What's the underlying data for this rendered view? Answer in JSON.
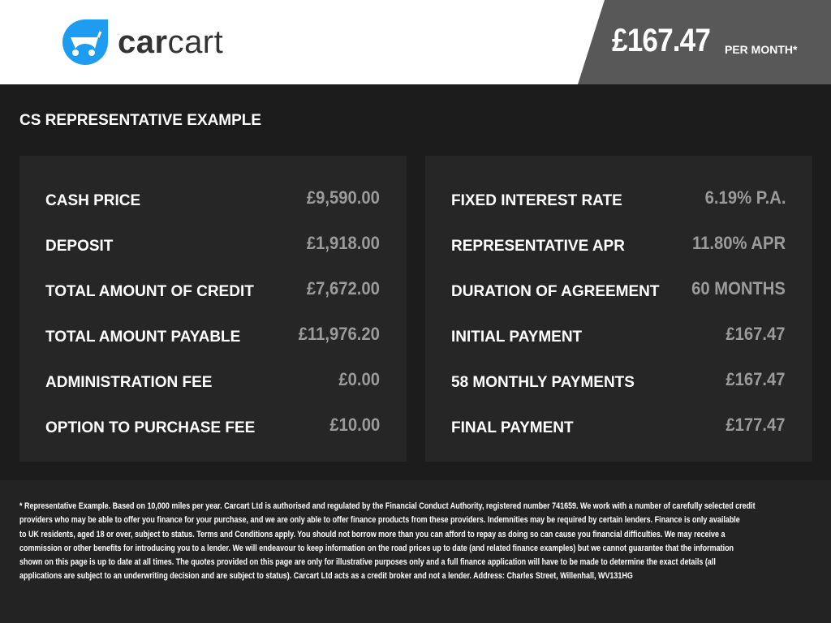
{
  "header": {
    "brand": "carcart",
    "brand_parts": [
      "car",
      "cart"
    ],
    "brand_color": "#1e9cef",
    "monthly_price": "£167.47",
    "monthly_label": "PER MONTH*"
  },
  "section_title": "CS REPRESENTATIVE EXAMPLE",
  "left_items": [
    {
      "label": "CASH PRICE",
      "value": "£9,590.00"
    },
    {
      "label": "DEPOSIT",
      "value": "£1,918.00"
    },
    {
      "label": "TOTAL AMOUNT OF CREDIT",
      "value": "£7,672.00"
    },
    {
      "label": "TOTAL AMOUNT PAYABLE",
      "value": "£11,976.20"
    },
    {
      "label": "ADMINISTRATION FEE",
      "value": "£0.00"
    },
    {
      "label": "OPTION TO PURCHASE FEE",
      "value": "£10.00"
    }
  ],
  "right_items": [
    {
      "label": "FIXED INTEREST RATE",
      "value": "6.19% P.A."
    },
    {
      "label": "REPRESENTATIVE APR",
      "value": "11.80% APR"
    },
    {
      "label": "DURATION OF AGREEMENT",
      "value": "60 MONTHS"
    },
    {
      "label": "INITIAL PAYMENT",
      "value": "£167.47"
    },
    {
      "label": "58 MONTHLY PAYMENTS",
      "value": "£167.47"
    },
    {
      "label": "FINAL PAYMENT",
      "value": "£177.47"
    }
  ],
  "disclaimer_lines": [
    "* Representative Example. Based on 10,000 miles per year. Carcart Ltd is authorised and regulated by the Financial Conduct Authority, registered number 741659. We work with a number of carefully selected credit",
    "providers who may be able to offer you finance for your purchase, and we are only able to offer finance products from these providers. Indemnities may be required by certain lenders. Finance is only available",
    "to UK residents, aged 18 or over, subject to status. Terms and Conditions apply. You should not borrow more than you can afford to repay as doing so can cause you financial difficulties. We may receive a",
    "commission or other benefits for introducing you to a lender. We will endeavour to keep information on the road prices up to date (and related finance examples) but we cannot guarantee that the information",
    "shown on this page is up to date at all times. The quotes provided on this page are only for illustrative purposes only and a full finance application will have to be made to determine the exact details (all",
    "applications are subject to an underwriting decision and are subject to status). Carcart Ltd acts as a credit broker and not a lender. Address: Charles Street, Willenhall, WV131HG"
  ]
}
